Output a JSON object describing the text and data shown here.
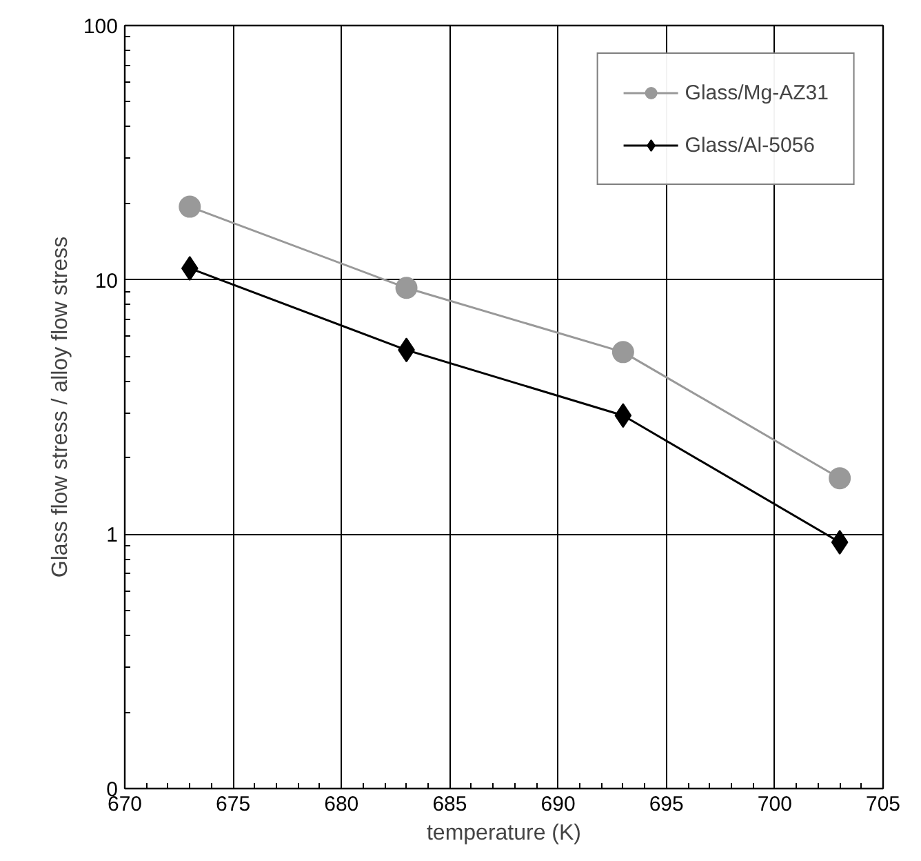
{
  "chart_data": {
    "type": "line",
    "xlabel": "temperature (K)",
    "ylabel": "Glass flow stress / alloy flow stress",
    "x": [
      673,
      683,
      693,
      703
    ],
    "series": [
      {
        "name": "Glass/Mg-AZ31",
        "color": "#999999",
        "marker": "circle",
        "values": [
          19.4,
          9.3,
          5.2,
          1.66
        ]
      },
      {
        "name": "Glass/Al-5056",
        "color": "#000000",
        "marker": "diamond",
        "values": [
          11.1,
          5.3,
          2.93,
          0.93
        ]
      }
    ],
    "log": "y",
    "xlim": [
      670,
      705
    ],
    "ylim": [
      0.1,
      100
    ],
    "xticks": [
      670,
      675,
      680,
      685,
      690,
      695,
      700,
      705
    ],
    "yticks": [
      {
        "value": 0.1,
        "label": "0"
      },
      1,
      10,
      100
    ],
    "grid": true,
    "legend": "top right",
    "line_style": "solid"
  }
}
